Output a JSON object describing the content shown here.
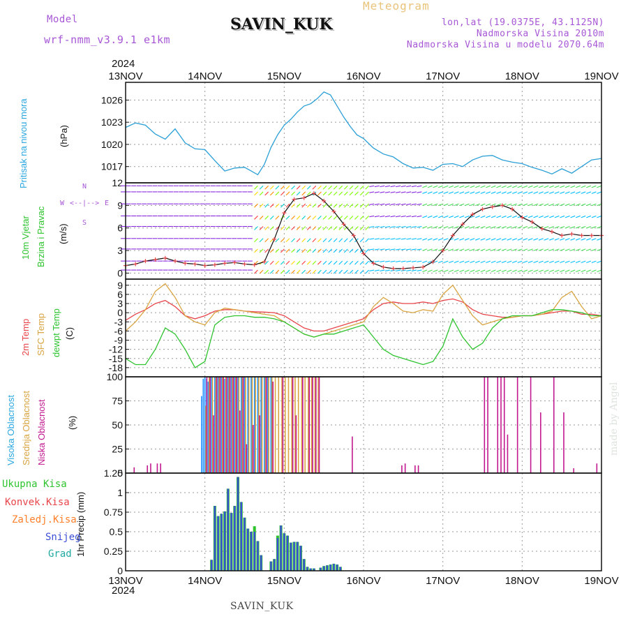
{
  "header": {
    "model_label": "Model",
    "model_name": "wrf-nmm_v3.9.1 e1km",
    "station": "SAVIN_KUK",
    "title": "Meteogram",
    "lonlat": "lon,lat (19.0375E, 43.1125N)",
    "elevation": "Nadmorska Visina 2010m",
    "model_elevation": "Nadmorska Visina u modelu 2070.64m",
    "year_top": "2024",
    "year_bottom": "2024",
    "footer_station": "SAVIN_KUK",
    "watermark": "made by Angel"
  },
  "time_axis": {
    "labels": [
      "13NOV",
      "14NOV",
      "15NOV",
      "16NOV",
      "17NOV",
      "18NOV",
      "19NOV"
    ],
    "range_hours": [
      0,
      144
    ]
  },
  "panel_labels": {
    "pressure": [
      "Pritisak na nivou mora",
      "(hPa)"
    ],
    "wind": [
      "10m Vjetar",
      "Brzina i Pravac",
      "(m/s)"
    ],
    "compass": {
      "n": "N",
      "s": "S",
      "w": "W",
      "e": "E"
    },
    "temp": [
      "2m Temp",
      "SFC Temp",
      "dewpt Temp",
      "(C)"
    ],
    "cloud": [
      "Visoka Oblacnost",
      "Srednja Oblacnost",
      "Niska Oblacnost",
      "(%)"
    ],
    "precip_legend": [
      "Ukupna Kisa",
      "Konvek.Kisa",
      "Zaledj.Kisa",
      "Snijeg",
      "Grad"
    ],
    "precip_unit": "1hr Precip (mm)"
  },
  "colors": {
    "pressure": "#2a9fd6",
    "t2m": "#e8454a",
    "sfc": "#d9a441",
    "dewpt": "#2ec42e",
    "cloud_high": "#1e90ff",
    "cloud_mid": "#d9a441",
    "cloud_low": "#c2188f",
    "precip_total": "#2ec42e",
    "precip_snow": "#3b4fd6",
    "precip_grad": "#1fa9a0",
    "precip_conv": "#e8454a",
    "precip_frz": "#ff7f2a"
  },
  "chart_data": [
    {
      "type": "line",
      "name": "pressure",
      "ylabel": "(hPa)",
      "ylim": [
        1014.8,
        1028.4
      ],
      "yticks": [
        1017,
        1020,
        1023,
        1026
      ],
      "x": [
        0,
        3,
        6,
        9,
        12,
        15,
        18,
        21,
        24,
        27,
        30,
        33,
        36,
        38,
        40,
        42,
        44,
        46,
        48,
        50,
        52,
        54,
        56,
        58,
        60,
        62,
        64,
        66,
        68,
        70,
        72,
        75,
        78,
        81,
        84,
        87,
        90,
        93,
        96,
        99,
        102,
        105,
        108,
        111,
        114,
        117,
        120,
        123,
        126,
        129,
        132,
        135,
        138,
        141,
        144
      ],
      "values": [
        1022.3,
        1022.9,
        1022.6,
        1021.4,
        1020.7,
        1022.1,
        1020.2,
        1019.4,
        1019.3,
        1017.8,
        1016.4,
        1016.8,
        1016.9,
        1016.4,
        1015.9,
        1017.3,
        1019.6,
        1021.3,
        1022.6,
        1023.4,
        1024.4,
        1025.2,
        1025.5,
        1026.2,
        1027.1,
        1026.7,
        1025.2,
        1023.7,
        1022.4,
        1021.3,
        1020.8,
        1019.5,
        1018.7,
        1018.3,
        1017.4,
        1016.8,
        1016.9,
        1016.5,
        1017.3,
        1017.4,
        1017.0,
        1017.9,
        1018.4,
        1018.5,
        1017.9,
        1017.6,
        1017.4,
        1016.9,
        1016.5,
        1016.0,
        1016.7,
        1016.1,
        1017.0,
        1017.9,
        1018.1
      ]
    },
    {
      "type": "line",
      "name": "wind",
      "ylabel": "(m/s)",
      "ylim": [
        -0.8,
        12
      ],
      "yticks": [
        0,
        3,
        6,
        9,
        12
      ],
      "x": [
        0,
        3,
        6,
        9,
        12,
        15,
        18,
        21,
        24,
        27,
        30,
        33,
        36,
        39,
        42,
        45,
        48,
        51,
        54,
        57,
        60,
        63,
        66,
        69,
        72,
        75,
        78,
        81,
        84,
        87,
        90,
        93,
        96,
        99,
        102,
        105,
        108,
        111,
        114,
        117,
        120,
        123,
        126,
        129,
        132,
        135,
        138,
        141,
        144
      ],
      "values": [
        1.0,
        1.2,
        1.6,
        1.8,
        2.0,
        1.6,
        1.3,
        1.2,
        1.0,
        1.1,
        1.3,
        1.4,
        1.2,
        1.1,
        1.5,
        4.5,
        8.0,
        9.8,
        10.0,
        10.6,
        9.6,
        8.2,
        6.5,
        5.0,
        2.6,
        1.3,
        0.8,
        0.6,
        0.6,
        0.7,
        0.8,
        1.5,
        3.0,
        5.0,
        6.5,
        7.8,
        8.5,
        8.8,
        9.0,
        8.5,
        7.4,
        6.8,
        5.9,
        5.5,
        5.0,
        5.2,
        5.0,
        5.0,
        5.0
      ]
    },
    {
      "type": "line",
      "name": "temperature",
      "ylabel": "(C)",
      "ylim": [
        -21,
        11
      ],
      "yticks": [
        -18,
        -15,
        -12,
        -9,
        -6,
        -3,
        0,
        3,
        6,
        9
      ],
      "x": [
        0,
        3,
        6,
        9,
        12,
        15,
        18,
        21,
        24,
        27,
        30,
        33,
        36,
        39,
        42,
        45,
        48,
        51,
        54,
        57,
        60,
        63,
        66,
        69,
        72,
        75,
        78,
        81,
        84,
        87,
        90,
        93,
        96,
        99,
        102,
        105,
        108,
        111,
        114,
        117,
        120,
        123,
        126,
        129,
        132,
        135,
        138,
        141,
        144
      ],
      "series": [
        {
          "name": "2m Temp",
          "values": [
            -2.5,
            -0.5,
            1.0,
            3.0,
            4.0,
            2.0,
            -1.0,
            -2.0,
            -1.0,
            0.5,
            1.0,
            1.0,
            0.5,
            0.3,
            0.2,
            0.0,
            -1.0,
            -3.0,
            -5.0,
            -6.0,
            -6.0,
            -5.0,
            -4.0,
            -3.0,
            -2.0,
            1.0,
            3.0,
            3.5,
            3.0,
            3.0,
            3.5,
            3.0,
            4.0,
            4.5,
            3.5,
            1.0,
            -0.5,
            -1.0,
            -1.5,
            -1.5,
            -1.0,
            -1.0,
            -0.5,
            0.0,
            0.5,
            0.5,
            -0.5,
            -0.5,
            -1.0
          ]
        },
        {
          "name": "SFC Temp",
          "values": [
            -6.0,
            -3.0,
            1.0,
            7.0,
            9.5,
            5.0,
            -1.0,
            -3.0,
            -4.0,
            0.0,
            1.5,
            1.0,
            0.5,
            0.0,
            -0.5,
            -1.0,
            -3.0,
            -5.0,
            -7.0,
            -8.0,
            -7.0,
            -6.0,
            -5.0,
            -4.0,
            -3.0,
            2.0,
            5.0,
            3.0,
            0.5,
            0.0,
            1.0,
            0.5,
            6.0,
            9.0,
            4.0,
            -1.0,
            -4.0,
            -3.0,
            -2.0,
            -1.5,
            -1.0,
            -1.0,
            -0.5,
            0.5,
            5.0,
            7.0,
            2.0,
            -2.0,
            -1.0
          ]
        },
        {
          "name": "dewpt Temp",
          "values": [
            -15.0,
            -17.0,
            -17.0,
            -12.0,
            -5.0,
            -7.0,
            -12.0,
            -18.0,
            -16.0,
            -4.0,
            -1.5,
            -1.0,
            -1.0,
            -1.5,
            -1.5,
            -2.0,
            -3.0,
            -5.0,
            -7.0,
            -8.0,
            -7.0,
            -7.0,
            -6.0,
            -5.0,
            -4.0,
            -8.0,
            -12.0,
            -14.0,
            -15.0,
            -16.0,
            -17.0,
            -16.0,
            -11.0,
            -2.0,
            -8.0,
            -12.0,
            -10.0,
            -5.0,
            -2.0,
            -1.0,
            -1.0,
            -1.0,
            0.0,
            1.0,
            1.0,
            0.5,
            0.0,
            -1.0,
            -1.0
          ]
        }
      ]
    },
    {
      "type": "bar",
      "name": "cloud",
      "ylabel": "(%)",
      "ylim": [
        0,
        100
      ],
      "yticks": [
        0,
        25,
        50,
        75,
        100
      ],
      "series": [
        {
          "name": "Visoka Oblacnost",
          "x": [
            23,
            23.5,
            24,
            24.5,
            25,
            26,
            27,
            28,
            29,
            30,
            31,
            32,
            33,
            34,
            35,
            36,
            37,
            38,
            39,
            40,
            41,
            42,
            43,
            44
          ],
          "values": [
            80,
            98,
            100,
            98,
            95,
            100,
            100,
            100,
            100,
            98,
            100,
            100,
            100,
            100,
            100,
            100,
            100,
            100,
            100,
            100,
            100,
            100,
            100,
            100
          ]
        },
        {
          "name": "Srednja Oblacnost",
          "x": [
            24,
            25,
            26,
            27,
            28,
            29,
            30,
            31,
            32,
            33,
            34,
            35,
            36,
            37,
            38,
            39,
            40,
            41,
            42,
            43,
            44,
            45,
            46,
            47,
            48,
            49,
            50,
            51,
            52,
            53,
            54,
            55,
            56,
            57,
            58
          ],
          "values": [
            70,
            100,
            100,
            100,
            100,
            100,
            100,
            100,
            100,
            100,
            100,
            100,
            100,
            100,
            100,
            100,
            100,
            100,
            100,
            100,
            100,
            100,
            100,
            100,
            100,
            100,
            100,
            100,
            100,
            100,
            100,
            100,
            100,
            100,
            100
          ]
        },
        {
          "name": "Niska Oblacnost",
          "x": [
            2,
            6,
            7,
            9,
            10,
            24,
            25,
            26,
            27,
            28,
            29,
            30,
            31,
            32,
            33,
            34,
            35,
            36,
            38,
            40,
            42,
            44,
            47,
            50,
            51,
            53,
            55,
            56,
            57,
            58,
            68,
            83,
            84,
            87,
            88,
            108,
            109,
            112,
            113,
            114,
            115,
            118,
            122,
            125,
            129,
            132,
            135,
            142
          ],
          "values": [
            6,
            8,
            10,
            10,
            10,
            100,
            100,
            60,
            100,
            100,
            100,
            100,
            100,
            100,
            100,
            65,
            100,
            30,
            50,
            60,
            100,
            95,
            100,
            100,
            60,
            100,
            100,
            100,
            100,
            100,
            38,
            8,
            10,
            8,
            8,
            100,
            100,
            100,
            100,
            100,
            40,
            100,
            100,
            63,
            100,
            63,
            5,
            10
          ]
        }
      ]
    },
    {
      "type": "bar",
      "name": "precip",
      "ylabel": "1hr Precip (mm)",
      "ylim": [
        0,
        1.25
      ],
      "yticks": [
        0,
        0.25,
        0.5,
        0.75,
        1,
        1.25
      ],
      "x": [
        26,
        27,
        28,
        29,
        30,
        31,
        32,
        33,
        34,
        35,
        36,
        37,
        38,
        39,
        40,
        41,
        42,
        43,
        44,
        45,
        46,
        47,
        48,
        49,
        50,
        51,
        52,
        53,
        54,
        55,
        56,
        57,
        58,
        59,
        60,
        61,
        62,
        63,
        64,
        65
      ],
      "series": [
        {
          "name": "Ukupna Kisa",
          "values": [
            0.14,
            0.83,
            0.7,
            0.73,
            0.76,
            1.05,
            0.74,
            0.83,
            1.2,
            0.88,
            0.68,
            0.54,
            0.5,
            0.57,
            0.38,
            0.2,
            0.0,
            0.0,
            0.12,
            0.15,
            0.45,
            0.58,
            0.48,
            0.45,
            0.36,
            0.37,
            0.37,
            0.32,
            0.15,
            0.05,
            0.03,
            0.03,
            0.0,
            0.04,
            0.06,
            0.07,
            0.08,
            0.09,
            0.08,
            0.05
          ]
        },
        {
          "name": "Snijeg",
          "values": [
            0.14,
            0.83,
            0.7,
            0.73,
            0.76,
            1.05,
            0.74,
            0.83,
            1.2,
            0.88,
            0.68,
            0.54,
            0.5,
            0.5,
            0.38,
            0.2,
            0.0,
            0.0,
            0.12,
            0.15,
            0.42,
            0.58,
            0.48,
            0.45,
            0.36,
            0.37,
            0.37,
            0.32,
            0.15,
            0.05,
            0.03,
            0.03,
            0.0,
            0.04,
            0.06,
            0.07,
            0.08,
            0.09,
            0.08,
            0.05
          ]
        }
      ]
    }
  ]
}
